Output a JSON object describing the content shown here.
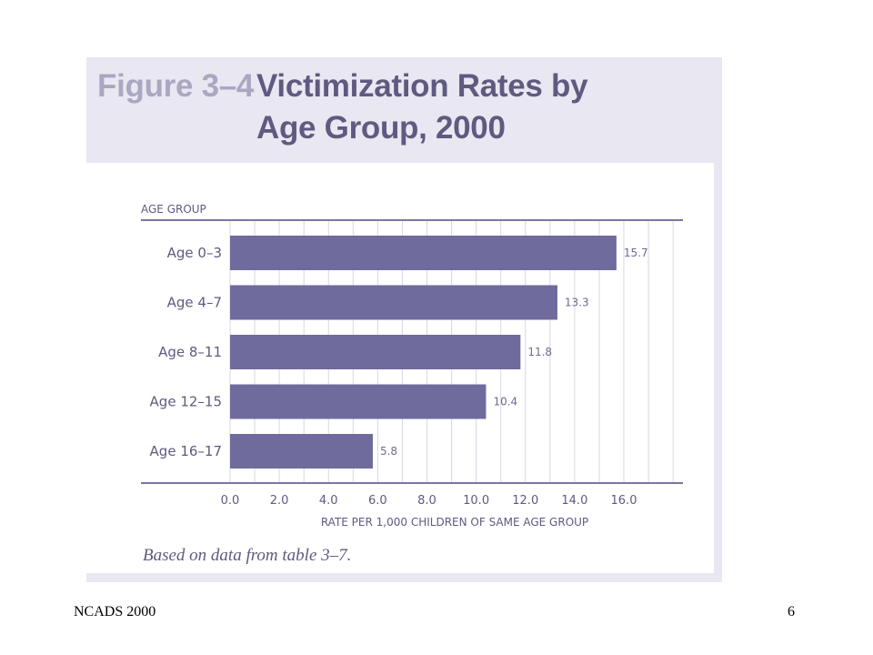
{
  "figure": {
    "label": "Figure 3–4",
    "title_line1": "Victimization Rates by",
    "title_line2": "Age Group, 2000",
    "note": "Based on data from table 3–7."
  },
  "chart_data": {
    "type": "bar",
    "orientation": "horizontal",
    "ylabel": "AGE GROUP",
    "xlabel": "RATE PER 1,000 CHILDREN OF SAME AGE GROUP",
    "categories": [
      "Age 0–3",
      "Age 4–7",
      "Age 8–11",
      "Age 12–15",
      "Age 16–17"
    ],
    "values": [
      15.7,
      13.3,
      11.8,
      10.4,
      5.8
    ],
    "value_labels": [
      "15.7",
      "13.3",
      "11.8",
      "10.4",
      "5.8"
    ],
    "x_ticks": [
      "0.0",
      "2.0",
      "4.0",
      "6.0",
      "8.0",
      "10.0",
      "12.0",
      "14.0",
      "16.0"
    ],
    "xlim": [
      0,
      18
    ],
    "grid": true,
    "bar_color": "#6f6b9c",
    "text_color": "#5f5a80"
  },
  "footer": {
    "left": "NCADS 2000",
    "right": "6"
  }
}
